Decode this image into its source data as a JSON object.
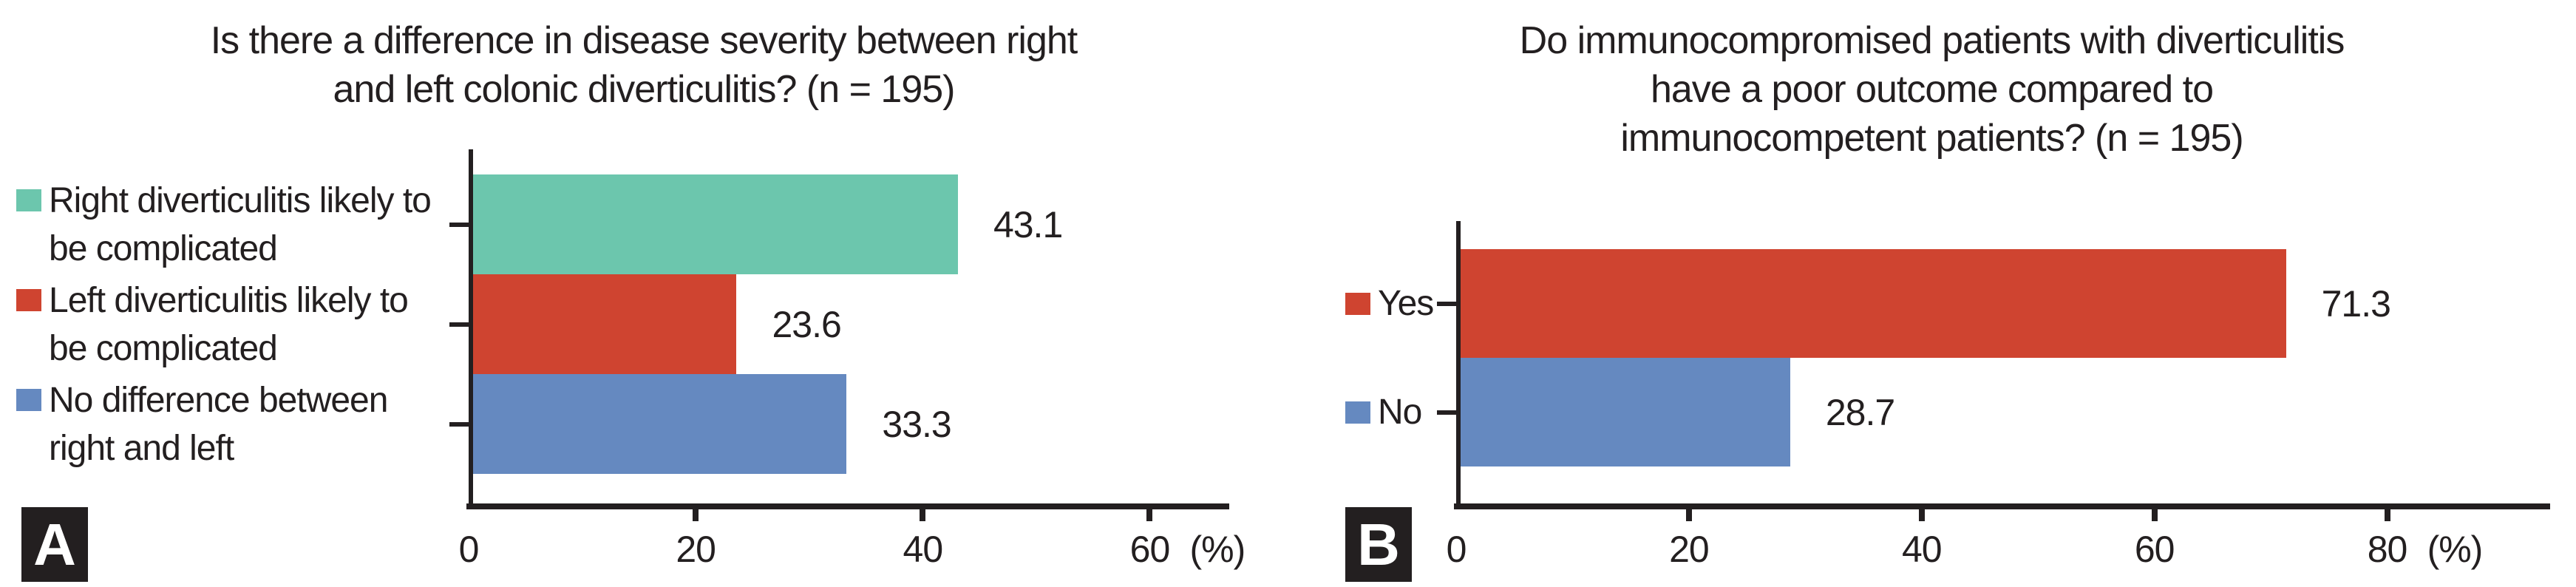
{
  "figure": {
    "background": "#ffffff",
    "text_color": "#231f20",
    "axis_color": "#231f20",
    "panel_letter_box_color": "#231f20",
    "panel_letter_text_color": "#ffffff"
  },
  "chart_data": [
    {
      "panel_label": "A",
      "type": "bar",
      "orientation": "horizontal",
      "title": "Is there a difference in disease severity between right and left colonic diverticulitis? (n = 195)",
      "title_lines": [
        "Is there a difference in disease severity between right",
        "and left colonic diverticulitis? (n = 195)"
      ],
      "categories": [
        "Right diverticulitis likely to be complicated",
        "Left diverticulitis likely to be complicated",
        "No difference between right and left"
      ],
      "category_label_lines": [
        [
          "Right diverticulitis likely to",
          "be complicated"
        ],
        [
          "Left diverticulitis likely to",
          "be complicated"
        ],
        [
          "No difference between",
          "right and left"
        ]
      ],
      "values": [
        43.1,
        23.6,
        33.3
      ],
      "value_labels": [
        "43.1",
        "23.6",
        "33.3"
      ],
      "bar_colors": [
        "#6cc6ad",
        "#cf4430",
        "#6589c0"
      ],
      "xlim": [
        0,
        67
      ],
      "xticks": [
        0,
        20,
        40,
        60
      ],
      "xtick_labels": [
        "0",
        "20",
        "40",
        "60"
      ],
      "x_unit_label": "(%)",
      "legend_position": "left",
      "grid": false
    },
    {
      "panel_label": "B",
      "type": "bar",
      "orientation": "horizontal",
      "title": "Do immunocompromised patients with diverticulitis have a poor outcome compared to immunocompetent patients? (n = 195)",
      "title_lines": [
        "Do immunocompromised patients with diverticulitis",
        "have a poor outcome compared to",
        "immunocompetent patients? (n = 195)"
      ],
      "categories": [
        "Yes",
        "No"
      ],
      "category_label_lines": [
        [
          "Yes"
        ],
        [
          "No"
        ]
      ],
      "values": [
        71.3,
        28.7
      ],
      "value_labels": [
        "71.3",
        "28.7"
      ],
      "bar_colors": [
        "#cf4430",
        "#6589c0"
      ],
      "xlim": [
        0,
        94
      ],
      "xticks": [
        0,
        20,
        40,
        60,
        80
      ],
      "xtick_labels": [
        "0",
        "20",
        "40",
        "60",
        "80"
      ],
      "x_unit_label": "(%)",
      "legend_position": "left",
      "grid": false
    }
  ]
}
